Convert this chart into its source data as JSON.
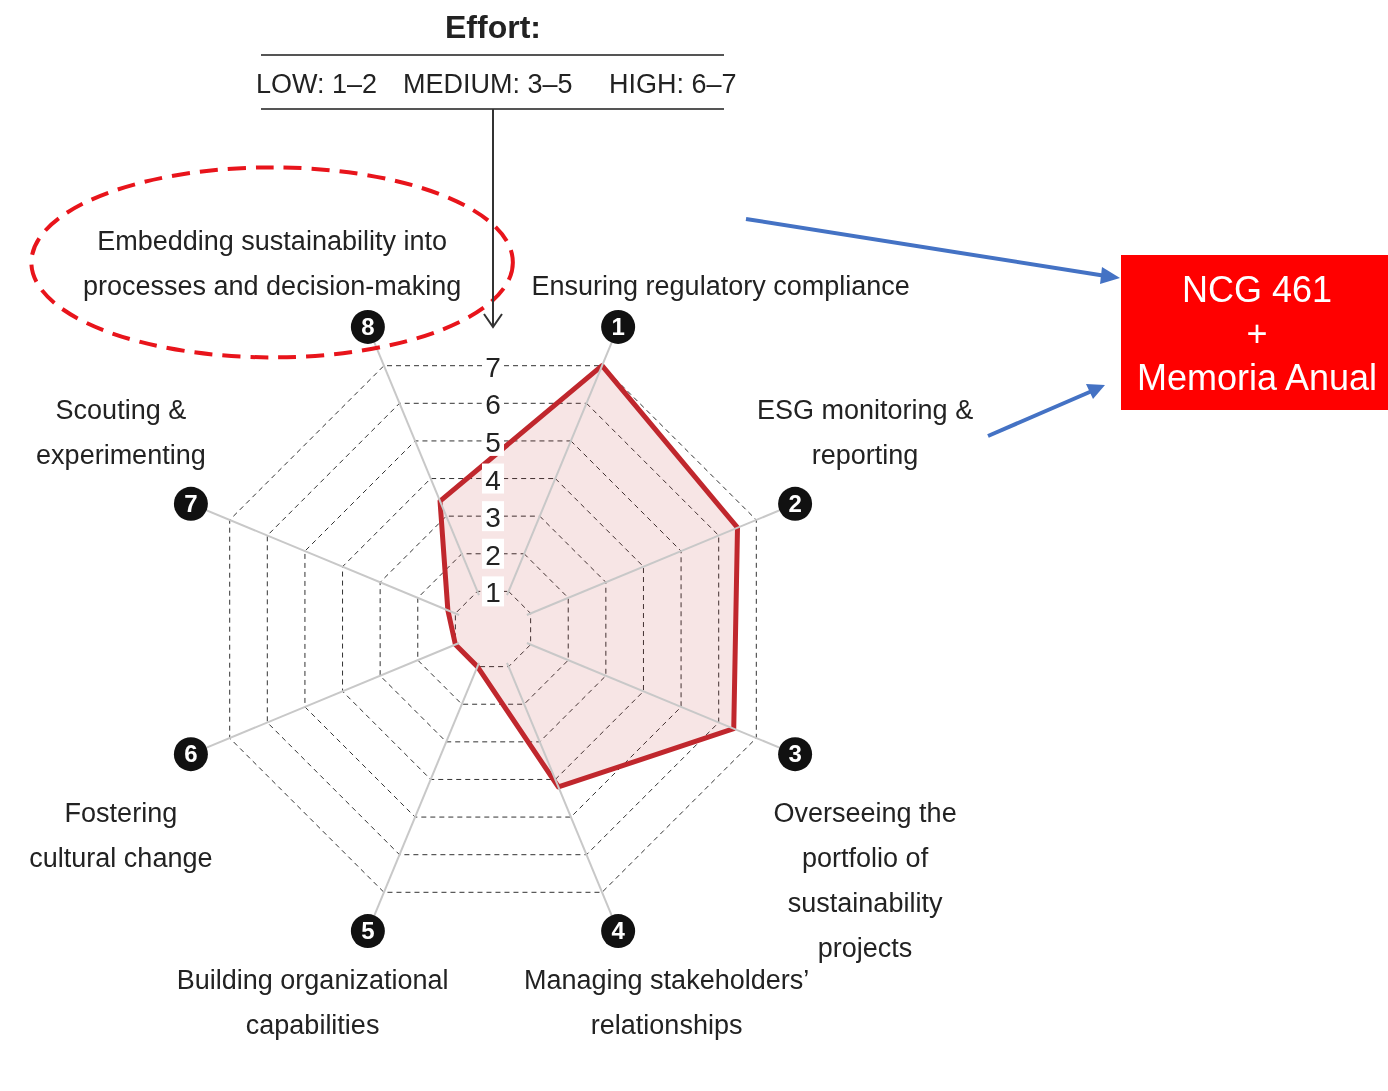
{
  "chart_data": {
    "type": "radar",
    "legend_title": "Effort:",
    "categories": [
      "Ensuring regulatory compliance",
      "ESG monitoring & reporting",
      "Overseeing the portfolio of sustainability projects",
      "Managing stakeholders’ relationships",
      "Building organizational capabilities",
      "Fostering cultural change",
      "Scouting & experimenting",
      "Embedding sustainability into processes and decision-making"
    ],
    "series": [
      {
        "color": "#c0272d",
        "values": [
          7,
          6.5,
          6.4,
          4.2,
          1,
          1,
          1.2,
          3.4
        ]
      }
    ],
    "ylim": [
      0,
      7
    ],
    "yticks": [
      1,
      2,
      3,
      4,
      5,
      6,
      7
    ],
    "grid": true,
    "line_style": "solid",
    "marker": "none",
    "annotations": [
      "LOW: 1–2",
      "MEDIUM: 3–5",
      "HIGH: 6–7",
      "NCG 461\n+\nMemoria Anual",
      "1",
      "2",
      "3",
      "4",
      "5",
      "6",
      "7",
      "8"
    ]
  }
}
